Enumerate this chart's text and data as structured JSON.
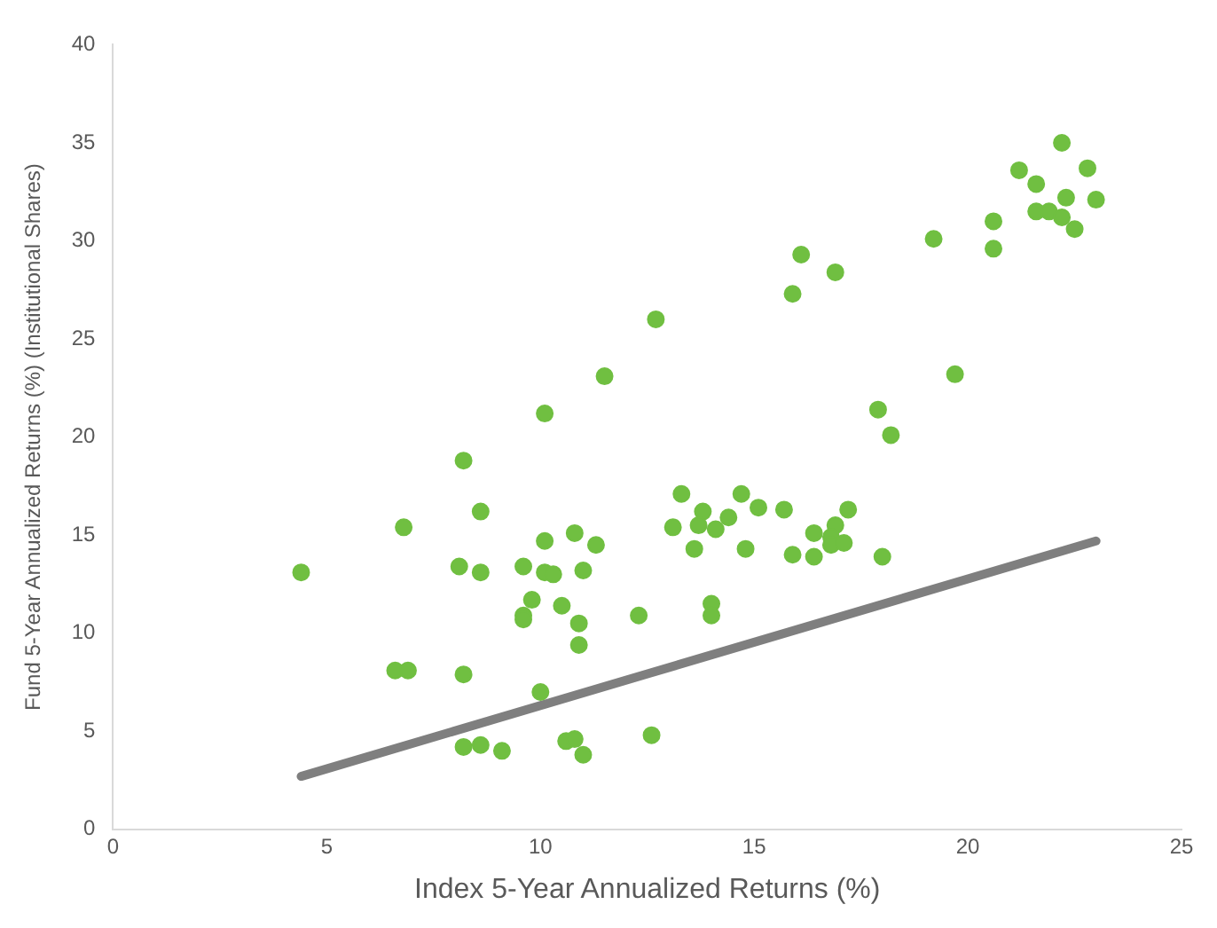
{
  "chart_data": {
    "type": "scatter",
    "xlabel": "Index 5-Year Annualized Returns (%)",
    "ylabel": "Fund 5-Year Annualized Returns (%) (Institutional Shares)",
    "xlim": [
      0,
      25
    ],
    "ylim": [
      0,
      40
    ],
    "xticks": [
      0,
      5,
      10,
      15,
      20,
      25
    ],
    "yticks": [
      0,
      5,
      10,
      15,
      20,
      25,
      30,
      35,
      40
    ],
    "grid": false,
    "legend": false,
    "marker": "circle",
    "series": [
      {
        "type": "scatter",
        "color": "#70bf41",
        "x": [
          4.4,
          6.6,
          6.9,
          6.8,
          8.1,
          8.2,
          8.2,
          8.6,
          8.6,
          8.2,
          8.6,
          9.1,
          9.6,
          9.6,
          9.6,
          9.8,
          10.0,
          10.1,
          10.1,
          10.1,
          10.3,
          10.5,
          10.6,
          10.8,
          11.0,
          10.8,
          10.9,
          10.9,
          11.0,
          11.3,
          11.5,
          12.7,
          12.3,
          12.6,
          13.3,
          13.1,
          13.6,
          13.8,
          13.7,
          14.1,
          14.4,
          14.7,
          14.0,
          14.0,
          14.8,
          15.1,
          15.7,
          15.9,
          16.4,
          16.4,
          16.9,
          16.8,
          16.8,
          17.1,
          17.2,
          18.0,
          15.9,
          16.1,
          16.9,
          17.9,
          18.2,
          19.7,
          19.2,
          20.6,
          20.6,
          21.2,
          21.6,
          22.2,
          22.8,
          22.3,
          23.0,
          21.6,
          21.9,
          22.2,
          22.5
        ],
        "values": [
          13.1,
          8.1,
          8.1,
          15.4,
          13.4,
          7.9,
          18.8,
          16.2,
          13.1,
          4.2,
          4.3,
          4.0,
          13.4,
          10.9,
          10.7,
          11.7,
          7.0,
          21.2,
          14.7,
          13.1,
          13.0,
          11.4,
          4.5,
          4.6,
          3.8,
          15.1,
          10.5,
          9.4,
          13.2,
          14.5,
          23.1,
          26.0,
          10.9,
          4.8,
          17.1,
          15.4,
          14.3,
          16.2,
          15.5,
          15.3,
          15.9,
          17.1,
          11.5,
          10.9,
          14.3,
          16.4,
          16.3,
          14.0,
          15.1,
          13.9,
          15.5,
          14.9,
          14.5,
          14.6,
          16.3,
          13.9,
          27.3,
          29.3,
          28.4,
          21.4,
          20.1,
          23.2,
          30.1,
          29.6,
          31.0,
          33.6,
          32.9,
          35.0,
          33.7,
          32.2,
          32.1,
          31.5,
          31.5,
          31.2,
          30.6
        ]
      },
      {
        "type": "line",
        "color": "#7f7f7f",
        "x": [
          4.4,
          23.0
        ],
        "values": [
          2.7,
          14.7
        ],
        "marker": "none",
        "line_style": "solid"
      }
    ]
  }
}
